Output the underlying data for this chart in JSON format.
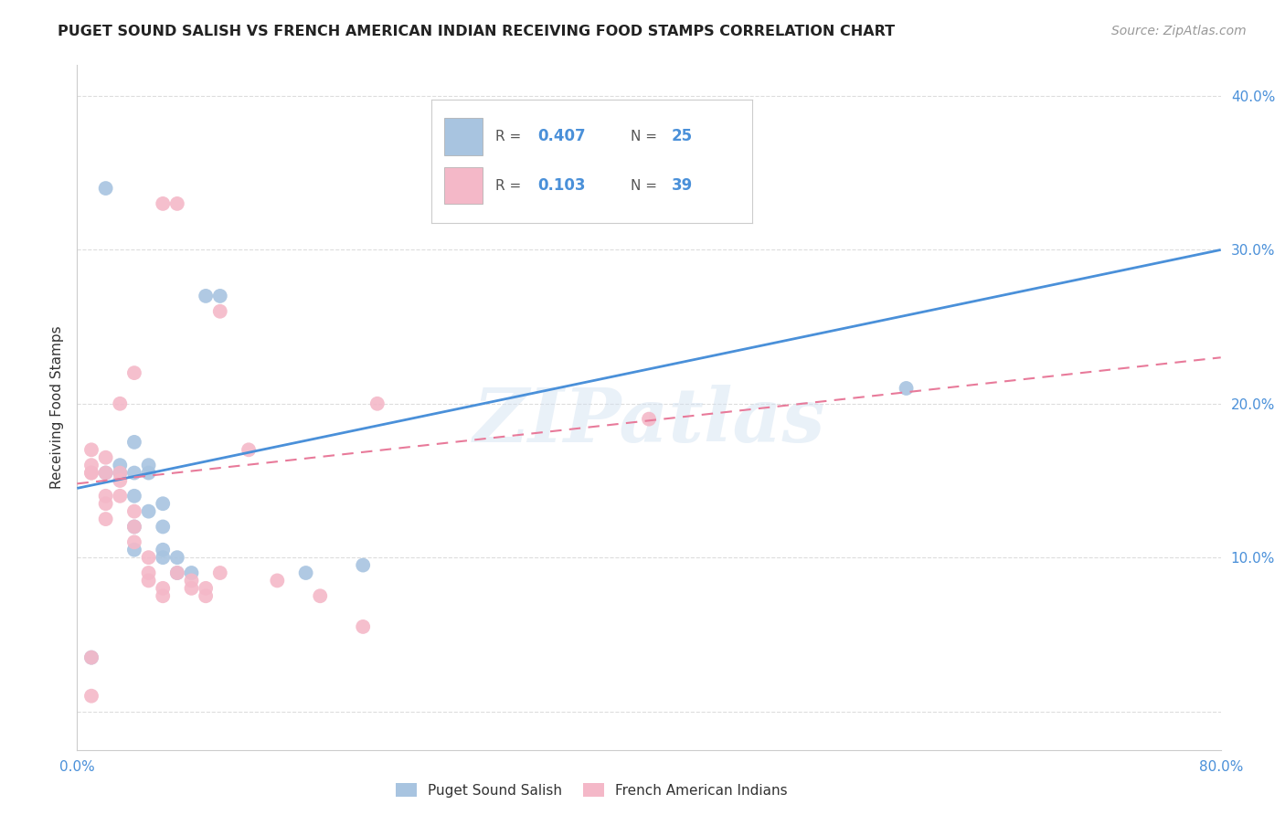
{
  "title": "PUGET SOUND SALISH VS FRENCH AMERICAN INDIAN RECEIVING FOOD STAMPS CORRELATION CHART",
  "source": "Source: ZipAtlas.com",
  "ylabel": "Receiving Food Stamps",
  "xlim": [
    0,
    0.8
  ],
  "ylim": [
    -0.025,
    0.42
  ],
  "yticks": [
    0.0,
    0.1,
    0.2,
    0.3,
    0.4
  ],
  "xticks": [
    0.0,
    0.1,
    0.2,
    0.3,
    0.4,
    0.5,
    0.6,
    0.7,
    0.8
  ],
  "xtick_labels": [
    "0.0%",
    "",
    "",
    "",
    "",
    "",
    "",
    "",
    "80.0%"
  ],
  "ytick_labels": [
    "",
    "10.0%",
    "20.0%",
    "30.0%",
    "40.0%"
  ],
  "blue_R": "0.407",
  "blue_N": "25",
  "pink_R": "0.103",
  "pink_N": "39",
  "blue_color": "#a8c4e0",
  "pink_color": "#f4b8c8",
  "blue_line_color": "#4a90d9",
  "pink_line_color": "#e87a9a",
  "legend1": "Puget Sound Salish",
  "legend2": "French American Indians",
  "watermark": "ZIPatlas",
  "blue_x": [
    0.01,
    0.02,
    0.02,
    0.03,
    0.03,
    0.04,
    0.04,
    0.04,
    0.04,
    0.04,
    0.05,
    0.05,
    0.05,
    0.06,
    0.06,
    0.06,
    0.06,
    0.07,
    0.07,
    0.08,
    0.09,
    0.1,
    0.16,
    0.2,
    0.58
  ],
  "blue_y": [
    0.035,
    0.34,
    0.155,
    0.155,
    0.16,
    0.175,
    0.155,
    0.14,
    0.12,
    0.105,
    0.16,
    0.155,
    0.13,
    0.135,
    0.12,
    0.105,
    0.1,
    0.1,
    0.09,
    0.09,
    0.27,
    0.27,
    0.09,
    0.095,
    0.21
  ],
  "pink_x": [
    0.01,
    0.01,
    0.01,
    0.01,
    0.01,
    0.01,
    0.02,
    0.02,
    0.02,
    0.02,
    0.02,
    0.03,
    0.03,
    0.03,
    0.03,
    0.04,
    0.04,
    0.04,
    0.04,
    0.05,
    0.05,
    0.05,
    0.06,
    0.06,
    0.06,
    0.07,
    0.07,
    0.08,
    0.08,
    0.09,
    0.09,
    0.1,
    0.1,
    0.12,
    0.14,
    0.17,
    0.2,
    0.21,
    0.4
  ],
  "pink_y": [
    0.01,
    0.035,
    0.155,
    0.155,
    0.16,
    0.17,
    0.125,
    0.135,
    0.14,
    0.155,
    0.165,
    0.155,
    0.15,
    0.14,
    0.2,
    0.13,
    0.12,
    0.11,
    0.22,
    0.1,
    0.09,
    0.085,
    0.08,
    0.075,
    0.33,
    0.33,
    0.09,
    0.085,
    0.08,
    0.08,
    0.075,
    0.09,
    0.26,
    0.17,
    0.085,
    0.075,
    0.055,
    0.2,
    0.19
  ],
  "blue_trend_x": [
    0.0,
    0.8
  ],
  "blue_trend_y": [
    0.145,
    0.3
  ],
  "pink_trend_x": [
    0.0,
    0.8
  ],
  "pink_trend_y": [
    0.148,
    0.23
  ],
  "bg_color": "#ffffff",
  "grid_color": "#dddddd"
}
